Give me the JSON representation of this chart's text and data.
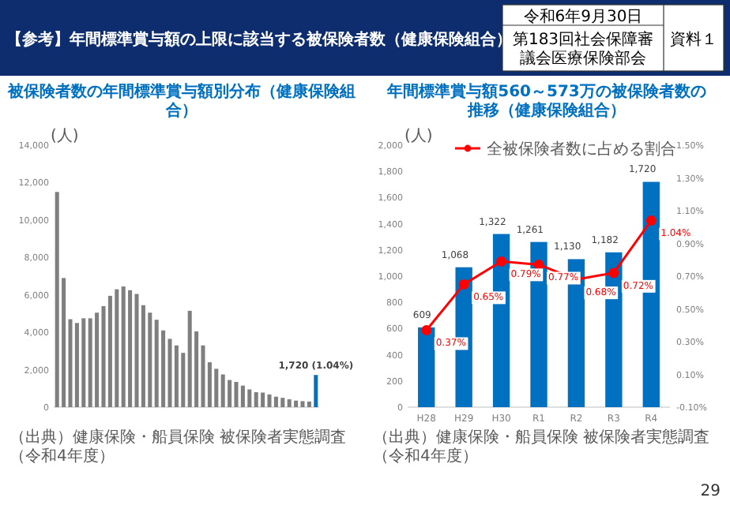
{
  "chart_data": [
    {
      "type": "other",
      "title": "【参考】年間標準賞与額の上限に該当する被保険者数（健康保険組合）",
      "annotations": [
        "令和6年9月30日",
        "第183回社会保障審議会医療保険部会",
        "資料１",
        "29"
      ]
    },
    {
      "type": "bar",
      "title": "被保険者数の年間標準賞与額別分布（健康保険組合）",
      "ylabel": "(人)",
      "categories": [
        null,
        null,
        null,
        null,
        null,
        null,
        null,
        null,
        null,
        null,
        null,
        null,
        null,
        null,
        null,
        null,
        null,
        null,
        null,
        null,
        null,
        null,
        null,
        null,
        null,
        null,
        null,
        null,
        null,
        null,
        null,
        null,
        null,
        null,
        null,
        null,
        null,
        null,
        null,
        null
      ],
      "values": [
        11500,
        6900,
        4700,
        4500,
        4750,
        4750,
        5050,
        5400,
        5950,
        6300,
        6450,
        6250,
        6050,
        5450,
        5050,
        4670,
        4100,
        3650,
        3300,
        2900,
        5150,
        4050,
        3300,
        2400,
        2050,
        1750,
        1450,
        1350,
        1150,
        950,
        800,
        780,
        680,
        560,
        500,
        420,
        350,
        320,
        300,
        1720
      ],
      "colors": [
        "#7f7f7f",
        "#7f7f7f",
        "#7f7f7f",
        "#7f7f7f",
        "#7f7f7f",
        "#7f7f7f",
        "#7f7f7f",
        "#7f7f7f",
        "#7f7f7f",
        "#7f7f7f",
        "#7f7f7f",
        "#7f7f7f",
        "#7f7f7f",
        "#7f7f7f",
        "#7f7f7f",
        "#7f7f7f",
        "#7f7f7f",
        "#7f7f7f",
        "#7f7f7f",
        "#7f7f7f",
        "#7f7f7f",
        "#7f7f7f",
        "#7f7f7f",
        "#7f7f7f",
        "#7f7f7f",
        "#7f7f7f",
        "#7f7f7f",
        "#7f7f7f",
        "#7f7f7f",
        "#7f7f7f",
        "#7f7f7f",
        "#7f7f7f",
        "#7f7f7f",
        "#7f7f7f",
        "#7f7f7f",
        "#7f7f7f",
        "#7f7f7f",
        "#7f7f7f",
        "#7f7f7f",
        "#0070c0"
      ],
      "ylim": [
        0,
        14000
      ],
      "yticks": [
        0,
        {
          "value": 2000,
          "label": "2,000"
        },
        {
          "value": 4000,
          "label": "4,000"
        },
        {
          "value": 6000,
          "label": "6,000"
        },
        {
          "value": 8000,
          "label": "8,000"
        },
        {
          "value": 10000,
          "label": "10,000"
        },
        {
          "value": 12000,
          "label": "12,000"
        },
        {
          "value": 14000,
          "label": "14,000"
        }
      ],
      "annotations": [
        {
          "text": "1,720 (1.04%)",
          "y": 1720
        },
        "（出典）健康保険・船員保険 被保険者実態調査（令和4年度）"
      ]
    },
    {
      "type": "bar",
      "title": "年間標準賞与額560～573万の被保険者数の推移（健康保険組合）",
      "ylabel": "(人)",
      "categories": [
        "H28",
        "H29",
        "H30",
        "R1",
        "R2",
        "R3",
        "R4"
      ],
      "series": [
        {
          "type": "bar",
          "color": "#0070c0",
          "values": [
            609,
            1068,
            1322,
            1261,
            1130,
            1182,
            1720
          ],
          "value_labels": [
            "609",
            "1,068",
            "1,322",
            "1,261",
            "1,130",
            "1,182",
            "1,720"
          ]
        },
        {
          "type": "line",
          "name": "全被保険者数に占める割合",
          "color": "#ff0000",
          "axis": "y2",
          "values": [
            0.37,
            0.65,
            0.79,
            0.77,
            0.68,
            0.72,
            1.04
          ],
          "value_labels": [
            "0.37%",
            "0.65%",
            "0.79%",
            "0.77%",
            "0.68%",
            "0.72%",
            "1.04%"
          ]
        }
      ],
      "ylim": [
        0,
        2000
      ],
      "yticks": [
        0,
        200,
        400,
        600,
        800,
        {
          "value": 1000,
          "label": "1,000"
        },
        {
          "value": 1200,
          "label": "1,200"
        },
        {
          "value": 1400,
          "label": "1,400"
        },
        {
          "value": 1600,
          "label": "1,600"
        },
        {
          "value": 1800,
          "label": "1,800"
        },
        {
          "value": 2000,
          "label": "2,000"
        }
      ],
      "y2lim": [
        -0.1,
        1.5
      ],
      "y2ticks": [
        {
          "value": -0.1,
          "label": "-0.10%"
        },
        {
          "value": 0.1,
          "label": "0.10%"
        },
        {
          "value": 0.3,
          "label": "0.30%"
        },
        {
          "value": 0.5,
          "label": "0.50%"
        },
        {
          "value": 0.7,
          "label": "0.70%"
        },
        {
          "value": 0.9,
          "label": "0.90%"
        },
        {
          "value": 1.1,
          "label": "1.10%"
        },
        {
          "value": 1.3,
          "label": "1.30%"
        },
        {
          "value": 1.5,
          "label": "1.50%"
        }
      ],
      "legend": "top",
      "marker": "circle",
      "annotations": [
        "（出典）健康保険・船員保険 被保険者実態調査（令和4年度）"
      ]
    }
  ]
}
